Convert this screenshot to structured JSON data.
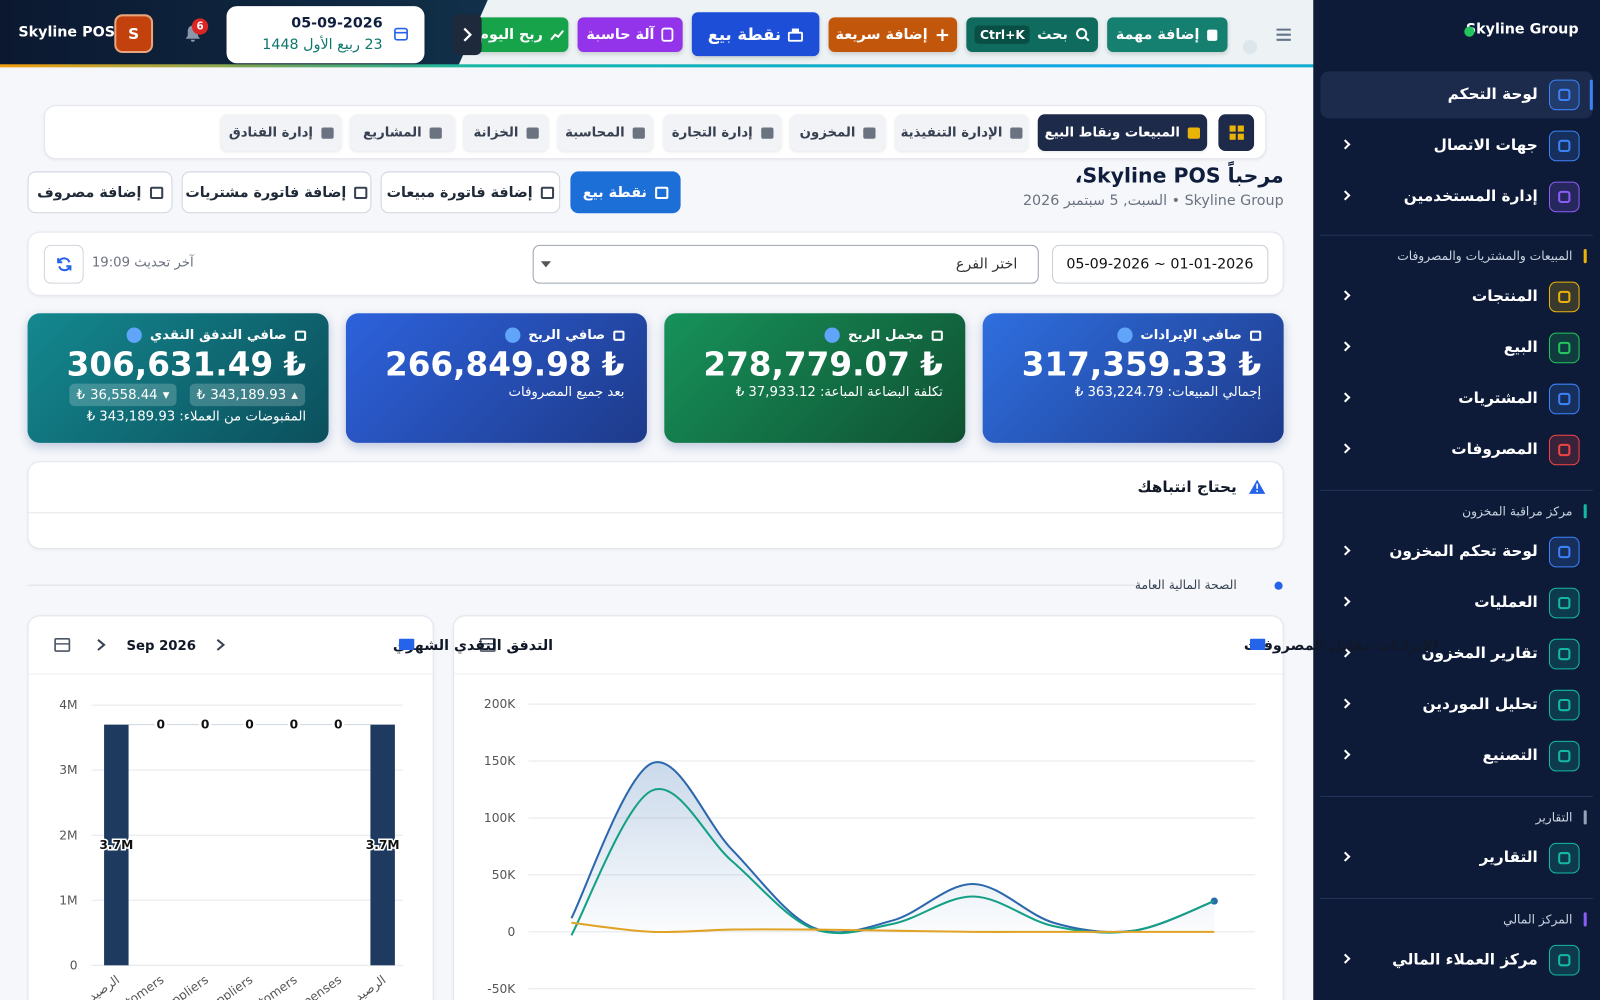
{
  "sidebar": {
    "brand": "Skyline Group",
    "items": [
      "لوحة التحكم",
      "جهات الاتصال",
      "إدارة المستخدمين"
    ],
    "groups": [
      {
        "title": "المبيعات والمشتريات والمصروفات",
        "items": [
          "المنتجات",
          "البيع",
          "المشتريات",
          "المصروفات"
        ]
      },
      {
        "title": "مركز مراقبة المخزون",
        "items": [
          "لوحة تحكم المخزون",
          "العمليات",
          "تقارير المخزون",
          "تحليل الموردين",
          "التصنيع"
        ]
      },
      {
        "title": "التقارير",
        "items": [
          "التقارير"
        ]
      },
      {
        "title": "المركز المالي",
        "items": [
          "مركز العملاء المالي"
        ]
      }
    ]
  },
  "topbar": {
    "user": "Skyline POS",
    "avatar": "S",
    "notifications": 6,
    "date": "05-09-2026",
    "hijri": "23 ربيع الأول 1448",
    "buttons": [
      "إضافة مهمة",
      "بحث",
      "إضافة سريعة",
      "نقطة بيع",
      "آلة حاسبة",
      "ربح اليوم"
    ],
    "shortcut": "Ctrl+K"
  },
  "tabs": [
    "المبيعات ونقاط البيع",
    "الإدارة التنفيذية",
    "المخزون",
    "إدارة التجارة",
    "المحاسبة",
    "الخزانة",
    "المشاريع",
    "إدارة الفنادق"
  ],
  "welcome": {
    "title": "مرحباً Skyline POS،",
    "subtitle": "Skyline Group • السبت, 5 سبتمبر 2026"
  },
  "actions": [
    "نقطة بيع",
    "إضافة فاتورة مبيعات",
    "إضافة فاتورة مشتريات",
    "إضافة مصروف"
  ],
  "filters": {
    "date_range": "05-09-2026 ~ 01-01-2026",
    "branch": "اختر الفرع",
    "last_update": "آخر تحديث 19:09"
  },
  "currency": "₺",
  "kpis": [
    {
      "title": "صافي الإيرادات",
      "value": "317,359.33",
      "note_label": "إجمالي المبيعات:",
      "note_value": "363,224.79"
    },
    {
      "title": "مجمل الربح",
      "value": "278,779.07",
      "note_label": "تكلفة البضاعة المباعة:",
      "note_value": "37,933.12"
    },
    {
      "title": "صافي الربح",
      "value": "266,849.98",
      "note": "بعد جميع المصروفات"
    },
    {
      "title": "صافي التدفق النقدي",
      "value": "306,631.49",
      "inflow": "343,189.93",
      "outflow": "36,558.44",
      "note_label": "المقبوضات من العملاء:",
      "note_value": "343,189.93"
    }
  ],
  "attention": {
    "title": "يحتاج انتباهك"
  },
  "section": "الصحة المالية العامة",
  "chart_data": [
    {
      "type": "line",
      "title": "الإيرادات مقابل المصروفات",
      "categories": [
        null,
        null,
        null,
        null,
        null,
        null,
        null,
        null,
        null
      ],
      "series": [
        {
          "color": "#2b67ad",
          "values": [
            12000,
            148000,
            72000,
            4000,
            10000,
            42000,
            8000,
            1000,
            27000
          ]
        },
        {
          "color": "#14a085",
          "values": [
            -3000,
            124000,
            62000,
            3000,
            7000,
            31000,
            5000,
            1000,
            27000
          ]
        },
        {
          "color": "#e0a325",
          "values": [
            8000,
            0,
            2000,
            2000,
            1000,
            0,
            0,
            0,
            0
          ]
        }
      ],
      "ylim": [
        -50000,
        200000
      ],
      "yticks": [
        {
          "value": -50000,
          "label": "-50K"
        },
        0,
        {
          "value": 50000,
          "label": "50K"
        },
        {
          "value": 100000,
          "label": "100K"
        },
        {
          "value": 150000,
          "label": "150K"
        },
        {
          "value": 200000,
          "label": "200K"
        }
      ],
      "grid": true
    },
    {
      "type": "waterfall",
      "title": "التدفق النقدي الشهري",
      "period": "Sep 2026",
      "categories": [
        "الرصيد",
        "Customers",
        "Suppliers",
        "Suppliers",
        "Customers",
        "Expenses",
        "الرصيد"
      ],
      "values": [
        3700000,
        0,
        0,
        0,
        0,
        0,
        3700000
      ],
      "value_labels": [
        "3.7M",
        "0",
        "0",
        "0",
        "0",
        "0",
        "3.7M"
      ],
      "color": "#1e3a5f",
      "ylim": [
        0,
        4000000
      ],
      "yticks": [
        0,
        {
          "value": 1000000,
          "label": "1M"
        },
        {
          "value": 2000000,
          "label": "2M"
        },
        {
          "value": 3000000,
          "label": "3M"
        },
        {
          "value": 4000000,
          "label": "4M"
        }
      ],
      "grid": true
    }
  ]
}
